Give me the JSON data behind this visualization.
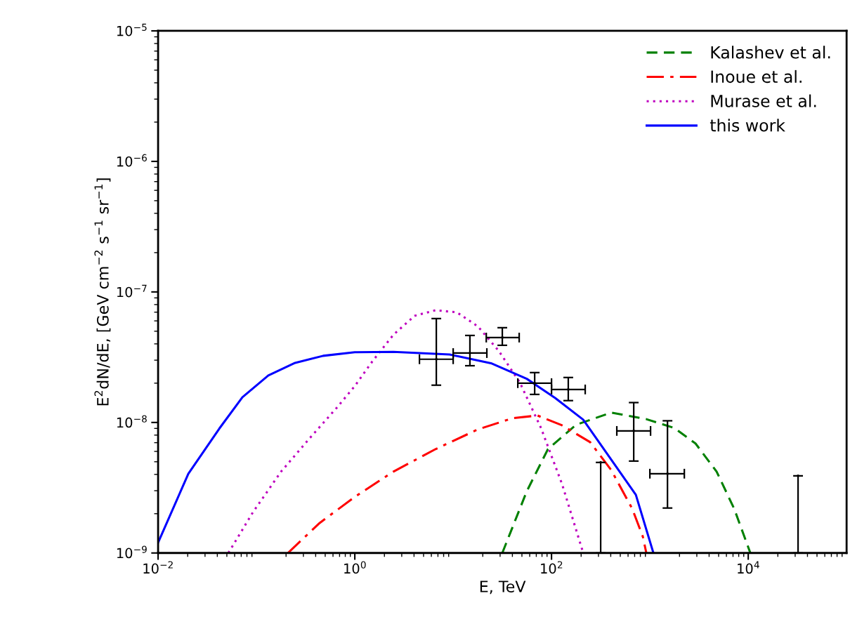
{
  "chart_data": {
    "type": "line",
    "xlabel": "E, TeV",
    "ylabel": "E$^{2}$dN/dE, [GeV cm$^{−2}$ s$^{−1}$ sr$^{−1}$]",
    "log": "xy",
    "grid": false,
    "legend": "top right",
    "xlim": [
      0.01,
      100000
    ],
    "ylim": [
      1e-09,
      1e-05
    ],
    "xticks": [
      {
        "value": 0.01,
        "label": "10$^{−2}$"
      },
      {
        "value": 1,
        "label": "10$^{0}$"
      },
      {
        "value": 100,
        "label": "10$^{2}$"
      },
      {
        "value": 10000,
        "label": "10$^{4}$"
      }
    ],
    "yticks": [
      {
        "value": 1e-09,
        "label": "10$^{−9}$"
      },
      {
        "value": 1e-08,
        "label": "10$^{−8}$"
      },
      {
        "value": 1e-07,
        "label": "10$^{−7}$"
      },
      {
        "value": 1e-06,
        "label": "10$^{−6}$"
      },
      {
        "value": 1e-05,
        "label": "10$^{−5}$"
      }
    ],
    "series": [
      {
        "name": "Kalashev et al.",
        "color": "#008000",
        "line_style": "dashed",
        "marker": "none",
        "x": [
          31.6,
          56,
          92,
          178,
          405,
          920,
          1778,
          2910,
          4770,
          7200,
          10500
        ],
        "values": [
          1e-09,
          2.97e-09,
          6.25e-09,
          9.6e-09,
          1.19e-08,
          1.06e-08,
          9.06e-09,
          6.9e-09,
          4.2e-09,
          2.18e-09,
          1e-09
        ]
      },
      {
        "name": "Inoue et al.",
        "color": "#ff0000",
        "line_style": "dashdot",
        "marker": "none",
        "x": [
          0.209,
          0.44,
          1,
          2.47,
          6.63,
          17.8,
          40.5,
          72,
          128,
          247,
          405,
          662,
          849,
          920
        ],
        "values": [
          1e-09,
          1.7e-09,
          2.69e-09,
          4.2e-09,
          6.25e-09,
          8.84e-09,
          1.08e-08,
          1.13e-08,
          9.5e-09,
          7.06e-09,
          4.31e-09,
          2.18e-09,
          1.33e-09,
          1e-09
        ]
      },
      {
        "name": "Murase et al.",
        "color": "#bf00bf",
        "line_style": "dotted",
        "marker": "none",
        "x": [
          0.0518,
          0.092,
          0.178,
          0.344,
          0.663,
          1,
          1.51,
          2.47,
          4.05,
          6.63,
          10.9,
          17.8,
          29.1,
          47.7,
          78.2,
          128,
          210
        ],
        "values": [
          1e-09,
          2.05e-09,
          4.2e-09,
          7.5e-09,
          1.31e-08,
          1.9e-08,
          2.94e-08,
          4.7e-08,
          6.56e-08,
          7.24e-08,
          6.98e-08,
          5.45e-08,
          3.53e-08,
          2.02e-08,
          9.06e-09,
          3.37e-09,
          1e-09
        ]
      },
      {
        "name": "this work",
        "color": "#0000ff",
        "line_style": "solid",
        "marker": "none",
        "x": [
          0.01,
          0.0203,
          0.0418,
          0.072,
          0.132,
          0.247,
          0.477,
          1,
          2.47,
          9.2,
          24.7,
          56,
          109,
          210,
          405,
          720,
          1086
        ],
        "values": [
          1.2e-09,
          4.05e-09,
          8.95e-09,
          1.56e-08,
          2.29e-08,
          2.86e-08,
          3.24e-08,
          3.45e-08,
          3.47e-08,
          3.32e-08,
          2.83e-08,
          2.16e-08,
          1.54e-08,
          1.05e-08,
          5.19e-09,
          2.79e-09,
          1e-09
        ]
      },
      {
        "type": "scatter",
        "color": "#000000",
        "marker": "none",
        "x": [
          6.74,
          14.8,
          31.6,
          67.4,
          148,
          685,
          1510,
          316,
          32100
        ],
        "values": [
          3.05e-08,
          3.4e-08,
          4.47e-08,
          2e-08,
          1.79e-08,
          8.61e-09,
          4.05e-09,
          4.94e-09,
          3.9e-09
        ],
        "errors": [
          [
            1.93e-08,
            6.25e-08
          ],
          [
            2.72e-08,
            4.64e-08
          ],
          [
            3.9e-08,
            5.32e-08
          ],
          [
            1.64e-08,
            2.41e-08
          ],
          [
            1.47e-08,
            2.21e-08
          ],
          [
            5.06e-09,
            1.42e-08
          ],
          [
            2.21e-09,
            1.03e-08
          ],
          [
            1e-09,
            4.94e-09
          ],
          [
            1e-09,
            3.9e-09
          ]
        ],
        "xerrors": [
          [
            4.54,
            10.0
          ],
          [
            10.0,
            22.0
          ],
          [
            21.7,
            46.9
          ],
          [
            45.4,
            100
          ],
          [
            100,
            220
          ],
          [
            461,
            1016
          ],
          [
            1000,
            2240
          ],
          null,
          null
        ]
      }
    ]
  }
}
